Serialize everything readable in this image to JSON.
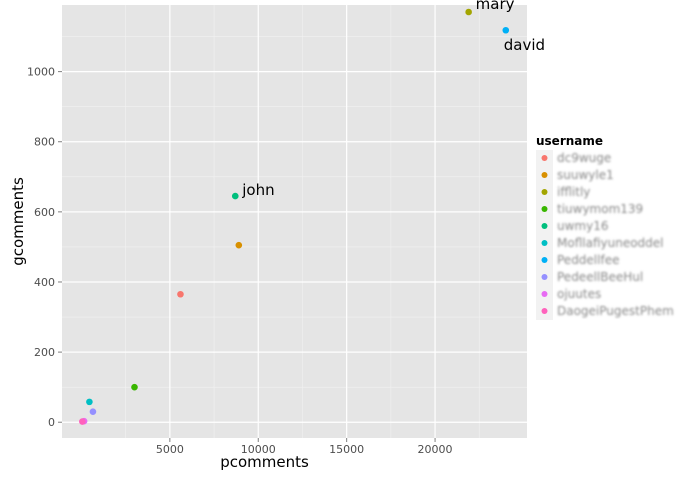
{
  "chart_data": {
    "type": "scatter",
    "title": "",
    "xlabel": "pcomments",
    "ylabel": "gcomments",
    "xlim": [
      -1100,
      25200
    ],
    "ylim": [
      -45,
      1190
    ],
    "x_ticks": [
      5000,
      10000,
      15000,
      20000
    ],
    "y_ticks": [
      0,
      200,
      400,
      600,
      800,
      1000
    ],
    "grid": true,
    "legend": {
      "title": "username",
      "placement": "right"
    },
    "series": [
      {
        "name": "dc9wuge",
        "color": "#F8766D",
        "x": 5600,
        "y": 365,
        "label": ""
      },
      {
        "name": "suuwyle1",
        "color": "#D89000",
        "x": 8900,
        "y": 505,
        "label": ""
      },
      {
        "name": "ifflitly",
        "color": "#A3A500",
        "x": 21900,
        "y": 1170,
        "label": "mary"
      },
      {
        "name": "tiuwymom139",
        "color": "#39B600",
        "x": 3000,
        "y": 100,
        "label": ""
      },
      {
        "name": "uwmy16",
        "color": "#00BF7D",
        "x": 8700,
        "y": 645,
        "label": "john"
      },
      {
        "name": "Mofllafiyuneoddel",
        "color": "#00BFC4",
        "x": 450,
        "y": 58,
        "label": ""
      },
      {
        "name": "Peddellfee",
        "color": "#00B0F6",
        "x": 24000,
        "y": 1118,
        "label": "david"
      },
      {
        "name": "PedeellBeeHul",
        "color": "#9590FF",
        "x": 650,
        "y": 30,
        "label": ""
      },
      {
        "name": "ojuutes",
        "color": "#E76BF3",
        "x": 150,
        "y": 3,
        "label": ""
      },
      {
        "name": "DaogeiPugestPhem",
        "color": "#FF62BC",
        "x": 50,
        "y": 2,
        "label": ""
      }
    ]
  }
}
